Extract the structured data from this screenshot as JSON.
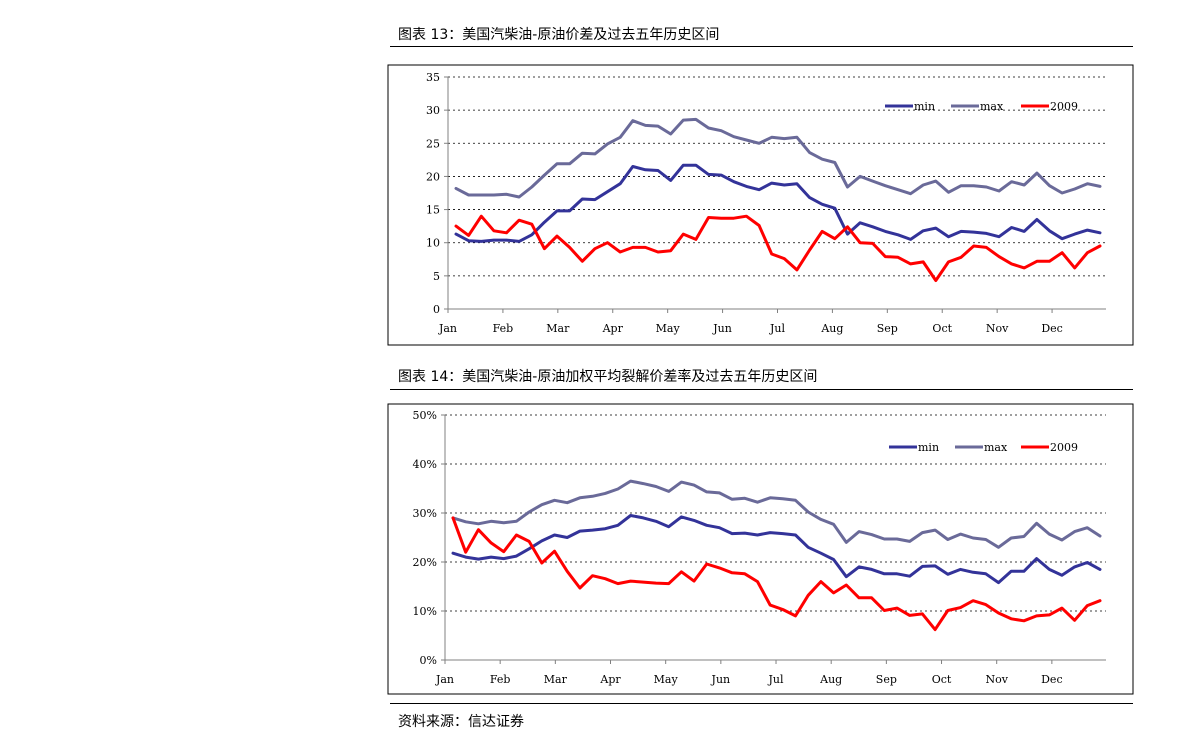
{
  "titles": {
    "chart1": "图表 13：美国汽柴油-原油价差及过去五年历史区间",
    "chart2": "图表 14：美国汽柴油-原油加权平均裂解价差率及过去五年历史区间"
  },
  "source": "资料来源：信达证券",
  "colors": {
    "min": "#333399",
    "max": "#6a6a99",
    "y2009": "#ff0000",
    "grid": "#000000",
    "axis": "#808080"
  },
  "chart_data": [
    {
      "type": "line",
      "title": "",
      "xlabel": "",
      "ylabel": "",
      "month_labels": [
        "Jan",
        "Feb",
        "Mar",
        "Apr",
        "May",
        "Jun",
        "Jul",
        "Aug",
        "Sep",
        "Oct",
        "Nov",
        "Dec"
      ],
      "x_unit": "week",
      "x": [
        1,
        2,
        3,
        4,
        5,
        6,
        7,
        8,
        9,
        10,
        11,
        12,
        13,
        14,
        15,
        16,
        17,
        18,
        19,
        20,
        21,
        22,
        23,
        24,
        25,
        26,
        27,
        28,
        29,
        30,
        31,
        32,
        33,
        34,
        35,
        36,
        37,
        38,
        39,
        40,
        41,
        42,
        43,
        44,
        45,
        46,
        47,
        48,
        49,
        50,
        51,
        52
      ],
      "yticks": [
        "0",
        "5",
        "10",
        "15",
        "20",
        "25",
        "30",
        "35"
      ],
      "ylim": [
        0,
        35
      ],
      "legend_position": "top-right",
      "grid": "horizontal-dashed",
      "series": [
        {
          "name": "min",
          "values": [
            11.3,
            10.3,
            10.2,
            10.4,
            10.4,
            10.2,
            11.2,
            13.1,
            14.8,
            14.8,
            16.6,
            16.5,
            17.7,
            18.9,
            21.5,
            21.0,
            20.9,
            19.4,
            21.7,
            21.7,
            20.3,
            20.2,
            19.2,
            18.5,
            18.0,
            19.0,
            18.7,
            18.9,
            16.8,
            15.8,
            15.2,
            11.3,
            13.0,
            12.4,
            11.7,
            11.2,
            10.5,
            11.8,
            12.2,
            10.9,
            11.7,
            11.6,
            11.4,
            10.9,
            12.3,
            11.7,
            13.5,
            11.8,
            10.6,
            11.3,
            11.9,
            11.5
          ]
        },
        {
          "name": "max",
          "values": [
            18.2,
            17.2,
            17.2,
            17.2,
            17.3,
            16.9,
            18.4,
            20.2,
            21.9,
            21.9,
            23.5,
            23.4,
            24.9,
            25.9,
            28.4,
            27.7,
            27.6,
            26.4,
            28.5,
            28.6,
            27.3,
            26.9,
            26.0,
            25.5,
            25.0,
            25.9,
            25.7,
            25.9,
            23.6,
            22.6,
            22.1,
            18.4,
            20.0,
            19.3,
            18.6,
            18.0,
            17.4,
            18.7,
            19.3,
            17.6,
            18.6,
            18.6,
            18.4,
            17.8,
            19.2,
            18.7,
            20.5,
            18.6,
            17.5,
            18.1,
            18.9,
            18.5
          ]
        },
        {
          "name": "2009",
          "values": [
            12.5,
            11.1,
            14.0,
            11.8,
            11.5,
            13.4,
            12.8,
            9.1,
            11.0,
            9.3,
            7.2,
            9.1,
            10.0,
            8.6,
            9.3,
            9.3,
            8.6,
            8.8,
            11.3,
            10.5,
            13.8,
            13.7,
            13.7,
            14.0,
            12.6,
            8.3,
            7.6,
            5.9,
            8.9,
            11.7,
            10.6,
            12.4,
            10.0,
            9.9,
            7.9,
            7.8,
            6.8,
            7.1,
            4.3,
            7.1,
            7.8,
            9.5,
            9.3,
            7.9,
            6.8,
            6.2,
            7.2,
            7.2,
            8.5,
            6.2,
            8.5,
            9.5
          ]
        }
      ]
    },
    {
      "type": "line",
      "title": "",
      "xlabel": "",
      "ylabel": "",
      "month_labels": [
        "Jan",
        "Feb",
        "Mar",
        "Apr",
        "May",
        "Jun",
        "Jul",
        "Aug",
        "Sep",
        "Oct",
        "Nov",
        "Dec"
      ],
      "x_unit": "week",
      "x": [
        1,
        2,
        3,
        4,
        5,
        6,
        7,
        8,
        9,
        10,
        11,
        12,
        13,
        14,
        15,
        16,
        17,
        18,
        19,
        20,
        21,
        22,
        23,
        24,
        25,
        26,
        27,
        28,
        29,
        30,
        31,
        32,
        33,
        34,
        35,
        36,
        37,
        38,
        39,
        40,
        41,
        42,
        43,
        44,
        45,
        46,
        47,
        48,
        49,
        50,
        51,
        52
      ],
      "yticks": [
        "0%",
        "10%",
        "20%",
        "30%",
        "40%",
        "50%"
      ],
      "ylim": [
        0,
        50
      ],
      "legend_position": "top-right",
      "grid": "horizontal-dashed",
      "series": [
        {
          "name": "min",
          "values": [
            21.8,
            21.0,
            20.6,
            21.0,
            20.7,
            21.2,
            22.7,
            24.3,
            25.5,
            25.0,
            26.3,
            26.5,
            26.8,
            27.5,
            29.5,
            29.0,
            28.3,
            27.2,
            29.2,
            28.5,
            27.5,
            27.0,
            25.8,
            25.9,
            25.5,
            26.0,
            25.8,
            25.5,
            23.0,
            21.8,
            20.5,
            17.0,
            19.0,
            18.5,
            17.6,
            17.6,
            17.1,
            19.1,
            19.2,
            17.5,
            18.5,
            17.9,
            17.6,
            15.8,
            18.1,
            18.1,
            20.7,
            18.5,
            17.3,
            19.0,
            19.9,
            18.5
          ]
        },
        {
          "name": "max",
          "values": [
            29.0,
            28.2,
            27.8,
            28.3,
            28.0,
            28.3,
            30.2,
            31.7,
            32.6,
            32.1,
            33.1,
            33.4,
            34.0,
            34.9,
            36.5,
            36.0,
            35.4,
            34.4,
            36.3,
            35.7,
            34.3,
            34.1,
            32.8,
            33.0,
            32.2,
            33.1,
            32.9,
            32.6,
            30.2,
            28.7,
            27.7,
            24.0,
            26.2,
            25.6,
            24.7,
            24.7,
            24.2,
            26.0,
            26.5,
            24.6,
            25.7,
            24.9,
            24.6,
            23.0,
            24.9,
            25.2,
            27.9,
            25.7,
            24.5,
            26.2,
            27.0,
            25.3
          ]
        },
        {
          "name": "2009",
          "values": [
            29.0,
            22.0,
            26.6,
            23.9,
            22.1,
            25.5,
            24.2,
            19.8,
            22.2,
            18.1,
            14.7,
            17.2,
            16.6,
            15.6,
            16.1,
            15.9,
            15.7,
            15.6,
            18.0,
            16.1,
            19.6,
            18.8,
            17.8,
            17.6,
            16.0,
            11.2,
            10.3,
            9.0,
            13.2,
            16.0,
            13.7,
            15.3,
            12.7,
            12.7,
            10.1,
            10.6,
            9.1,
            9.4,
            6.2,
            10.1,
            10.7,
            12.1,
            11.3,
            9.6,
            8.4,
            8.0,
            9.0,
            9.2,
            10.6,
            8.1,
            11.1,
            12.1
          ]
        }
      ]
    }
  ]
}
